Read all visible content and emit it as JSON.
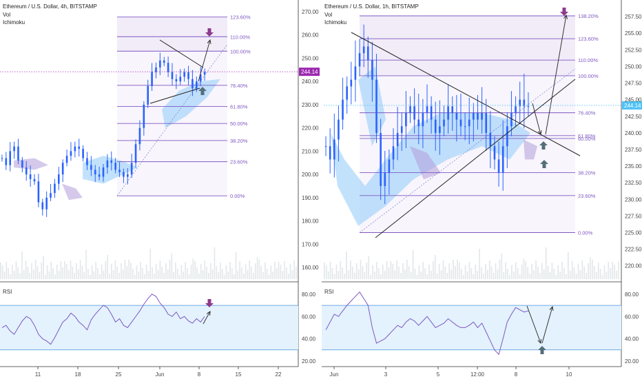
{
  "left_panel": {
    "title": "Ethereum / U.S. Dollar, 4h, BITSTAMP",
    "indicators": [
      "Vol",
      "Ichimoku"
    ],
    "price_axis_labels": [
      "270.00",
      "260.00",
      "250.00",
      "240.00",
      "230.00",
      "220.00",
      "210.00",
      "200.00",
      "190.00",
      "180.00",
      "170.00",
      "160.00"
    ],
    "current_price": "244.14",
    "fib_levels": [
      "123.60%",
      "110.00%",
      "100.00%",
      "76.40%",
      "61.80%",
      "50.00%",
      "38.20%",
      "23.60%",
      "0.00%"
    ],
    "rsi_label": "RSI",
    "rsi_axis_labels": [
      "80.00",
      "60.00",
      "40.00",
      "20.00"
    ],
    "time_labels": [
      "11",
      "18",
      "25",
      "Jun",
      "8",
      "15",
      "22"
    ]
  },
  "right_panel": {
    "title": "Ethereum / U.S. Dollar, 1h, BITSTAMP",
    "indicators": [
      "Vol",
      "Ichimoku"
    ],
    "price_axis_labels": [
      "257.50",
      "255.00",
      "252.50",
      "250.00",
      "247.50",
      "245.00",
      "242.50",
      "240.00",
      "237.50",
      "235.00",
      "232.50",
      "230.00",
      "227.50",
      "225.00",
      "222.50",
      "220.00"
    ],
    "current_price": "244.14",
    "fib_levels": [
      "138.20%",
      "123.60%",
      "110.00%",
      "100.00%",
      "76.40%",
      "61.80%",
      "60.00%",
      "38.20%",
      "23.60%",
      "0.00%"
    ],
    "rsi_label": "RSI",
    "rsi_axis_labels": [
      "80.00",
      "60.00",
      "40.00",
      "20.00"
    ],
    "time_labels": [
      "Jun",
      "3",
      "5",
      "12:00",
      "8",
      "10"
    ]
  },
  "colors": {
    "fib_line": "#7e57c2",
    "fib_text": "#7e57c2",
    "fib_zone": "#ede7f6",
    "cloud_blue": "#90caf9",
    "cloud_purple": "#b39ddb",
    "candle": "#2962ff",
    "price_tag": "#9c27b0",
    "rsi_line": "#7e57c2",
    "rsi_band": "#e3f2fd",
    "rsi_bound": "#4a90d9",
    "arrow_up": "#546e7a",
    "arrow_down": "#8e3a8e"
  },
  "chart_data": [
    {
      "type": "candlestick",
      "title": "Ethereum / U.S. Dollar, 4h, BITSTAMP",
      "ylim": [
        155,
        275
      ],
      "x_ticks": [
        "11",
        "18",
        "25",
        "Jun",
        "8",
        "15",
        "22"
      ],
      "close_price": 244.14,
      "fib_retracement": {
        "low": 190.8,
        "high": 253.0,
        "levels": [
          0,
          23.6,
          38.2,
          50,
          61.8,
          76.4,
          100,
          110,
          123.6
        ]
      },
      "series": [
        {
          "name": "Close",
          "values": [
            207,
            204,
            210,
            212,
            206,
            203,
            200,
            198,
            197,
            188,
            185,
            190,
            192,
            196,
            200,
            205,
            208,
            210,
            212,
            211,
            207,
            204,
            202,
            200,
            199,
            203,
            206,
            205,
            202,
            201,
            199,
            200,
            205,
            213,
            220,
            230,
            238,
            244,
            246,
            249,
            248,
            244,
            241,
            240,
            242,
            244,
            241,
            237,
            240,
            243,
            244
          ]
        }
      ],
      "rsi": {
        "upper": 70,
        "lower": 30,
        "ylim": [
          15,
          88
        ],
        "values": [
          50,
          52,
          47,
          44,
          50,
          56,
          60,
          58,
          52,
          44,
          40,
          38,
          35,
          41,
          48,
          55,
          58,
          63,
          60,
          55,
          52,
          48,
          57,
          62,
          66,
          70,
          68,
          62,
          55,
          58,
          52,
          50,
          55,
          60,
          65,
          71,
          76,
          80,
          78,
          72,
          68,
          62,
          60,
          64,
          58,
          60,
          56,
          54,
          58,
          55,
          60
        ]
      }
    },
    {
      "type": "candlestick",
      "title": "Ethereum / U.S. Dollar, 1h, BITSTAMP",
      "ylim": [
        218,
        260
      ],
      "x_ticks": [
        "Jun",
        "3",
        "5",
        "12:00",
        "8",
        "10"
      ],
      "close_price": 244.14,
      "fib_retracement": {
        "low": 225.0,
        "high": 248.6,
        "levels": [
          0,
          23.6,
          38.2,
          60,
          61.8,
          76.4,
          100,
          110,
          123.6,
          138.2
        ]
      },
      "series": [
        {
          "name": "Close",
          "values": [
            238,
            236,
            239,
            242,
            245,
            247,
            248,
            250,
            252,
            253,
            251,
            248,
            240,
            232,
            234,
            236,
            238,
            240,
            241,
            243,
            244,
            242,
            241,
            243,
            244,
            242,
            240,
            241,
            242,
            244,
            243,
            242,
            241,
            241,
            242,
            243,
            242,
            243,
            240,
            238,
            236,
            234,
            238,
            241,
            243,
            244,
            245,
            244,
            244
          ]
        }
      ],
      "rsi": {
        "upper": 70,
        "lower": 30,
        "ylim": [
          15,
          88
        ],
        "values": [
          48,
          55,
          62,
          60,
          65,
          70,
          74,
          78,
          82,
          76,
          70,
          50,
          36,
          38,
          40,
          44,
          48,
          52,
          50,
          55,
          58,
          56,
          52,
          56,
          60,
          55,
          50,
          52,
          54,
          58,
          55,
          52,
          50,
          50,
          52,
          55,
          50,
          54,
          46,
          38,
          30,
          26,
          40,
          55,
          62,
          68,
          66,
          64,
          65
        ]
      }
    }
  ]
}
